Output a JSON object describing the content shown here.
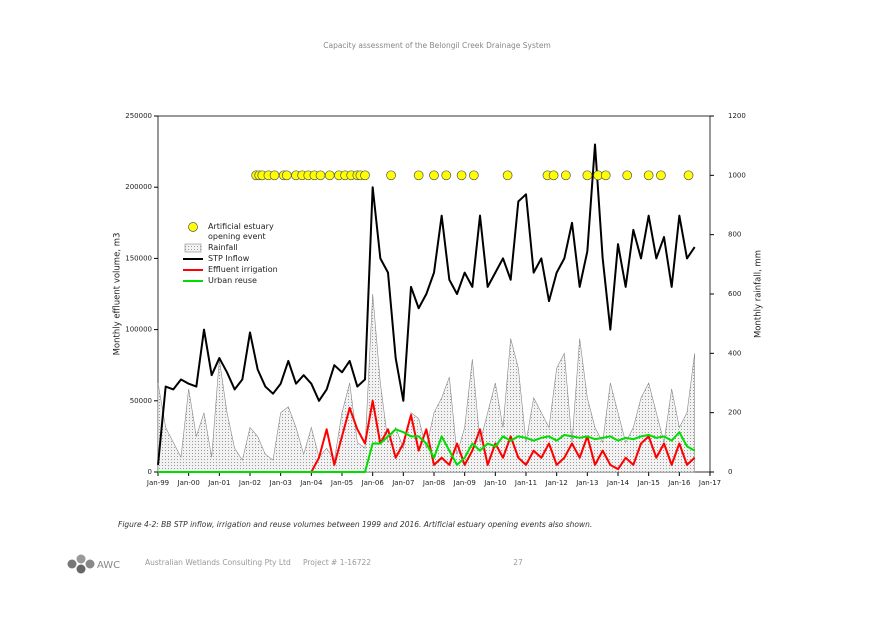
{
  "header": {
    "title": "Capacity assessment of the Belongil Creek Drainage System"
  },
  "chart_data": {
    "type": "line",
    "ylabel": "Monthly effluent volume, m3",
    "y2label": "Monthly rainfall, mm",
    "xlim": [
      1999,
      2017
    ],
    "xticks": [
      {
        "value": 1999,
        "label": "Jan-99"
      },
      {
        "value": 2000,
        "label": "Jan-00"
      },
      {
        "value": 2001,
        "label": "Jan-01"
      },
      {
        "value": 2002,
        "label": "Jan-02"
      },
      {
        "value": 2003,
        "label": "Jan-03"
      },
      {
        "value": 2004,
        "label": "Jan-04"
      },
      {
        "value": 2005,
        "label": "Jan-05"
      },
      {
        "value": 2006,
        "label": "Jan-06"
      },
      {
        "value": 2007,
        "label": "Jan-07"
      },
      {
        "value": 2008,
        "label": "Jan-08"
      },
      {
        "value": 2009,
        "label": "Jan-09"
      },
      {
        "value": 2010,
        "label": "Jan-10"
      },
      {
        "value": 2011,
        "label": "Jan-11"
      },
      {
        "value": 2012,
        "label": "Jan-12"
      },
      {
        "value": 2013,
        "label": "Jan-13"
      },
      {
        "value": 2014,
        "label": "Jan-14"
      },
      {
        "value": 2015,
        "label": "Jan-15"
      },
      {
        "value": 2016,
        "label": "Jan-16"
      },
      {
        "value": 2017,
        "label": "Jan-17"
      }
    ],
    "ylim": [
      0,
      250000
    ],
    "yticks": [
      0,
      50000,
      100000,
      150000,
      200000,
      250000
    ],
    "y2lim": [
      0,
      1200
    ],
    "y2ticks": [
      0,
      200,
      400,
      600,
      800,
      1000,
      1200
    ],
    "legend": "upper left",
    "x": [
      1999,
      1999.25,
      1999.5,
      1999.75,
      2000,
      2000.25,
      2000.5,
      2000.75,
      2001,
      2001.25,
      2001.5,
      2001.75,
      2002,
      2002.25,
      2002.5,
      2002.75,
      2003,
      2003.25,
      2003.5,
      2003.75,
      2004,
      2004.25,
      2004.5,
      2004.75,
      2005,
      2005.25,
      2005.5,
      2005.75,
      2006,
      2006.25,
      2006.5,
      2006.75,
      2007,
      2007.25,
      2007.5,
      2007.75,
      2008,
      2008.25,
      2008.5,
      2008.75,
      2009,
      2009.25,
      2009.5,
      2009.75,
      2010,
      2010.25,
      2010.5,
      2010.75,
      2011,
      2011.25,
      2011.5,
      2011.75,
      2012,
      2012.25,
      2012.5,
      2012.75,
      2013,
      2013.25,
      2013.5,
      2013.75,
      2014,
      2014.25,
      2014.5,
      2014.75,
      2015,
      2015.25,
      2015.5,
      2015.75,
      2016,
      2016.25,
      2016.5
    ],
    "series": [
      {
        "name": "Artificial estuary opening event",
        "type": "scatter",
        "color": "#ffff00",
        "axis": "y2",
        "x": [
          2002.2,
          2002.3,
          2002.4,
          2002.6,
          2002.8,
          2003.1,
          2003.2,
          2003.5,
          2003.7,
          2003.9,
          2004.1,
          2004.3,
          2004.6,
          2004.9,
          2005.1,
          2005.3,
          2005.5,
          2005.6,
          2005.75,
          2006.6,
          2007.5,
          2008.0,
          2008.4,
          2008.9,
          2009.3,
          2010.4,
          2011.7,
          2011.9,
          2012.3,
          2013.0,
          2013.35,
          2013.6,
          2014.3,
          2015.0,
          2015.4,
          2016.3
        ],
        "values": [
          1000,
          1000,
          1000,
          1000,
          1000,
          1000,
          1000,
          1000,
          1000,
          1000,
          1000,
          1000,
          1000,
          1000,
          1000,
          1000,
          1000,
          1000,
          1000,
          1000,
          1000,
          1000,
          1000,
          1000,
          1000,
          1000,
          1000,
          1000,
          1000,
          1000,
          1000,
          1000,
          1000,
          1000,
          1000,
          1000
        ]
      },
      {
        "name": "Rainfall",
        "type": "area",
        "color": "#888888",
        "axis": "y2",
        "values": [
          300,
          150,
          100,
          50,
          280,
          120,
          200,
          50,
          380,
          200,
          80,
          40,
          150,
          120,
          60,
          40,
          200,
          220,
          150,
          60,
          150,
          50,
          80,
          40,
          200,
          300,
          100,
          80,
          600,
          300,
          100,
          150,
          80,
          200,
          180,
          80,
          200,
          250,
          320,
          60,
          150,
          380,
          100,
          200,
          300,
          150,
          450,
          350,
          100,
          250,
          200,
          150,
          350,
          400,
          100,
          450,
          250,
          150,
          100,
          300,
          200,
          100,
          150,
          250,
          300,
          200,
          100,
          280,
          150,
          200,
          400
        ]
      },
      {
        "name": "STP Inflow",
        "type": "line",
        "color": "#000000",
        "values": [
          5000,
          60000,
          58000,
          65000,
          62000,
          60000,
          100000,
          68000,
          80000,
          70000,
          58000,
          65000,
          98000,
          72000,
          60000,
          55000,
          62000,
          78000,
          62000,
          68000,
          62000,
          50000,
          58000,
          75000,
          70000,
          78000,
          60000,
          65000,
          200000,
          150000,
          140000,
          80000,
          50000,
          130000,
          115000,
          125000,
          140000,
          180000,
          135000,
          125000,
          140000,
          130000,
          180000,
          130000,
          140000,
          150000,
          135000,
          190000,
          195000,
          140000,
          150000,
          120000,
          140000,
          150000,
          175000,
          130000,
          155000,
          230000,
          150000,
          100000,
          160000,
          130000,
          170000,
          150000,
          180000,
          150000,
          165000,
          130000,
          180000,
          150000,
          158000
        ]
      },
      {
        "name": "Effluent irrigation",
        "type": "line",
        "color": "#ff0000",
        "values": [
          0,
          0,
          0,
          0,
          0,
          0,
          0,
          0,
          0,
          0,
          0,
          0,
          0,
          0,
          0,
          0,
          0,
          0,
          0,
          0,
          0,
          10000,
          30000,
          5000,
          25000,
          45000,
          30000,
          20000,
          50000,
          20000,
          30000,
          10000,
          20000,
          40000,
          15000,
          30000,
          5000,
          10000,
          5000,
          20000,
          5000,
          15000,
          30000,
          5000,
          20000,
          10000,
          25000,
          10000,
          5000,
          15000,
          10000,
          20000,
          5000,
          10000,
          20000,
          10000,
          25000,
          5000,
          15000,
          5000,
          2000,
          10000,
          5000,
          20000,
          25000,
          10000,
          20000,
          5000,
          20000,
          5000,
          10000
        ]
      },
      {
        "name": "Urban reuse",
        "type": "line",
        "color": "#00dd00",
        "values": [
          0,
          0,
          0,
          0,
          0,
          0,
          0,
          0,
          0,
          0,
          0,
          0,
          0,
          0,
          0,
          0,
          0,
          0,
          0,
          0,
          0,
          0,
          0,
          0,
          0,
          0,
          0,
          0,
          20000,
          20000,
          25000,
          30000,
          28000,
          25000,
          25000,
          20000,
          10000,
          25000,
          15000,
          5000,
          10000,
          20000,
          15000,
          20000,
          18000,
          25000,
          22000,
          25000,
          24000,
          22000,
          24000,
          25000,
          22000,
          26000,
          25000,
          24000,
          25000,
          23000,
          24000,
          25000,
          22000,
          24000,
          23000,
          25000,
          26000,
          24000,
          25000,
          22000,
          28000,
          18000,
          15000
        ]
      }
    ]
  },
  "caption": "Figure 4-2: BB STP inflow, irrigation and reuse volumes between 1999 and 2016.  Artificial estuary opening events also shown.",
  "footer": {
    "logo": "AWC",
    "company": "Australian Wetlands Consulting Pty Ltd",
    "project": "Project # 1-16722",
    "page": "27"
  }
}
